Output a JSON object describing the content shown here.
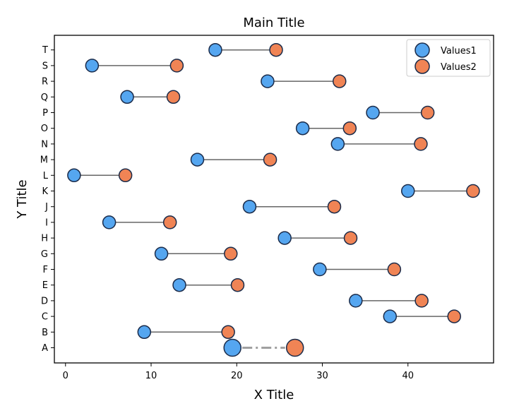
{
  "chart_data": {
    "type": "dumbbell",
    "title": "Main Title",
    "xlabel": "X Title",
    "ylabel": "Y Title",
    "xlim": [
      -1.3,
      50.0
    ],
    "xticks": [
      0,
      10,
      20,
      30,
      40
    ],
    "legend": {
      "position": "top-right",
      "entries": [
        "Values1",
        "Values2"
      ]
    },
    "colors": {
      "values1": "#55a6f0",
      "values2": "#f08455",
      "marker_edge": "#1a2b4a",
      "connector": "#666666",
      "highlight_connector": "#a0a0a0"
    },
    "categories": [
      "A",
      "B",
      "C",
      "D",
      "E",
      "F",
      "G",
      "H",
      "I",
      "J",
      "K",
      "L",
      "M",
      "N",
      "O",
      "P",
      "Q",
      "R",
      "S",
      "T"
    ],
    "series": [
      {
        "name": "Values1",
        "values": [
          19.5,
          9.2,
          37.9,
          33.9,
          13.3,
          29.7,
          11.2,
          25.6,
          5.1,
          21.5,
          40.0,
          1.0,
          15.4,
          31.8,
          27.7,
          35.9,
          7.2,
          23.6,
          3.1,
          17.5
        ]
      },
      {
        "name": "Values2",
        "values": [
          26.8,
          19.0,
          45.4,
          41.6,
          20.1,
          38.4,
          19.3,
          33.3,
          12.2,
          31.4,
          47.6,
          7.0,
          23.9,
          41.5,
          33.2,
          42.3,
          12.6,
          32.0,
          13.0,
          24.6
        ]
      }
    ],
    "highlight": {
      "category": "A",
      "style": "dash-dot"
    }
  }
}
